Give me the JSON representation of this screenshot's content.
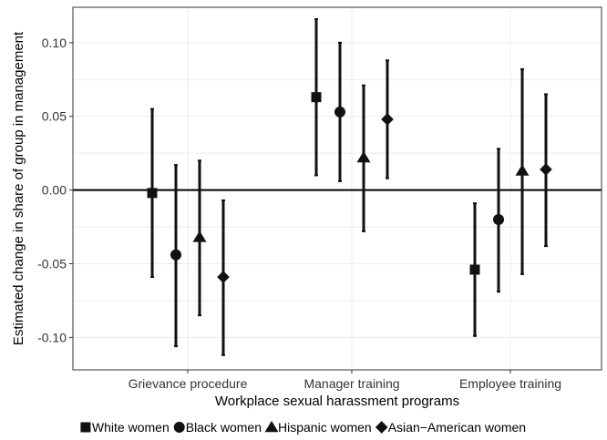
{
  "chart_data": {
    "type": "scatter",
    "title": "",
    "xlabel": "Workplace sexual harassment programs",
    "ylabel": "Estimated change in share of group in management",
    "categories": [
      "Grievance procedure",
      "Manager training",
      "Employee training"
    ],
    "ylim": [
      -0.122,
      0.124
    ],
    "yticks": [
      -0.1,
      -0.05,
      0.0,
      0.05,
      0.1
    ],
    "ytick_labels": [
      "-0.10",
      "-0.05",
      "0.00",
      "0.05",
      "0.10"
    ],
    "reference_line": 0,
    "grid": true,
    "legend_position": "bottom",
    "series": [
      {
        "name": "White women",
        "marker": "square",
        "estimates": [
          -0.002,
          0.063,
          -0.054
        ],
        "lower": [
          -0.059,
          0.01,
          -0.099
        ],
        "upper": [
          0.055,
          0.116,
          -0.009
        ]
      },
      {
        "name": "Black women",
        "marker": "circle",
        "estimates": [
          -0.044,
          0.053,
          -0.02
        ],
        "lower": [
          -0.106,
          0.006,
          -0.069
        ],
        "upper": [
          0.017,
          0.1,
          0.028
        ]
      },
      {
        "name": "Hispanic women",
        "marker": "triangle",
        "estimates": [
          -0.032,
          0.022,
          0.013
        ],
        "lower": [
          -0.085,
          -0.028,
          -0.057
        ],
        "upper": [
          0.02,
          0.071,
          0.082
        ]
      },
      {
        "name": "Asian−American women",
        "marker": "diamond",
        "estimates": [
          -0.059,
          0.048,
          0.014
        ],
        "lower": [
          -0.112,
          0.008,
          -0.038
        ],
        "upper": [
          -0.007,
          0.088,
          0.065
        ]
      }
    ]
  }
}
